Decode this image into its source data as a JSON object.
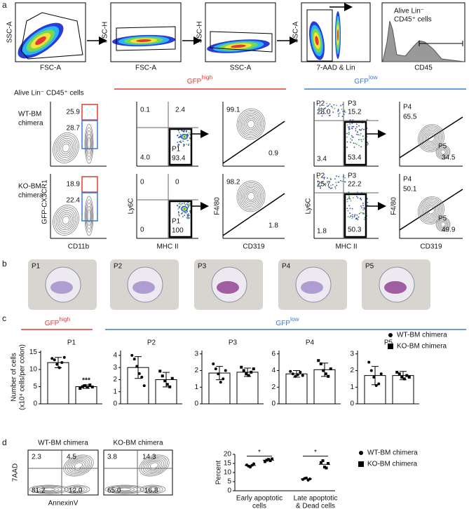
{
  "labels": [
    "a",
    "b",
    "c",
    "d"
  ],
  "a": {
    "top_plots": [
      {
        "y": "SSC-A",
        "x": "FSC-A"
      },
      {
        "y": "FSC-H",
        "x": "FSC-A"
      },
      {
        "y": "SSC-H",
        "x": "SSC-A"
      },
      {
        "y": "SSC-A",
        "x": "7-AAD & Lin"
      }
    ],
    "histogram": {
      "title": [
        "Alive Lin⁻",
        "CD45⁺ cells"
      ],
      "x": "CD45"
    },
    "gate_title": "Alive Lin⁻ CD45⁺ cells",
    "groups": [
      {
        "text": "GFP",
        "sup": "high",
        "color": "#e53935"
      },
      {
        "text": "GFP",
        "sup": "low",
        "color": "#3a7bd5"
      }
    ],
    "y_labels": [
      "GFP-CX3CR1",
      "Ly6C",
      "F4/80",
      "Ly6C",
      "F4/80"
    ],
    "x_labels": [
      "CD11b",
      "MHC II",
      "CD319",
      "MHC II",
      "CD319"
    ],
    "rows": [
      {
        "label": [
          "WT-BM",
          "chimera"
        ],
        "gating": [
          "25.9",
          "28.7"
        ],
        "mhc_high": {
          "q": [
            "0.1",
            "2.4",
            "4.0",
            "93.4"
          ],
          "gate": "P1"
        },
        "f4_high": [
          "99.1",
          "0.9"
        ],
        "mhc_low": {
          "q": [
            "28.0",
            "15.2",
            "3.4",
            "53.4"
          ],
          "gates": [
            "P2",
            "P3"
          ]
        },
        "f4_low": {
          "q": [
            "65.5",
            "34.5"
          ],
          "gates": [
            "P4",
            "P5"
          ]
        }
      },
      {
        "label": [
          "KO-BM",
          "chimera"
        ],
        "gating": [
          "18.9",
          "22.4"
        ],
        "mhc_high": {
          "q": [
            "0",
            "0",
            "0",
            "100"
          ],
          "gate": "P1"
        },
        "f4_high": [
          "98.2",
          "1.8"
        ],
        "mhc_low": {
          "q": [
            "25.7",
            "22.2",
            "1.8",
            "50.3"
          ],
          "gates": [
            "P2",
            "P3"
          ]
        },
        "f4_low": {
          "q": [
            "50.1",
            "49.9"
          ],
          "gates": [
            "P4",
            "P5"
          ]
        }
      }
    ]
  },
  "b": {
    "cells": [
      "P1",
      "P2",
      "P3",
      "P4",
      "P5"
    ]
  },
  "c": {
    "groups": [
      {
        "text": "GFP",
        "sup": "high",
        "color": "#e53935"
      },
      {
        "text": "GFP",
        "sup": "low",
        "color": "#3a7bd5"
      }
    ],
    "ylabel": [
      "Number of cells",
      "(x10⁴ cells/per colon)"
    ],
    "legend": [
      "WT-BM chimera",
      "KO-BM chimera"
    ],
    "charts": [
      {
        "type": "bar",
        "title": "P1",
        "values": [
          12,
          5
        ],
        "errors": [
          1.5,
          0.5
        ],
        "points": [
          [
            13.2,
            12.8,
            11.5,
            10.5,
            12,
            13.5
          ],
          [
            4.5,
            5,
            5.3,
            4.8,
            5.5,
            4.9
          ]
        ],
        "ylim": [
          0,
          15.5
        ],
        "yticks": [
          0,
          5,
          10,
          15
        ],
        "annotation": "***"
      },
      {
        "type": "bar",
        "title": "P2",
        "values": [
          3,
          2
        ],
        "errors": [
          0.9,
          0.6
        ],
        "points": [
          [
            4,
            3.7,
            3.1,
            2.5,
            2.2,
            1.5
          ],
          [
            2.7,
            2.3,
            1.9,
            1.6,
            1.4,
            2.1
          ]
        ],
        "ylim": [
          0,
          4.4
        ],
        "yticks": [
          0,
          1,
          2,
          3,
          4
        ]
      },
      {
        "type": "bar",
        "title": "P3",
        "values": [
          1.85,
          1.9
        ],
        "errors": [
          0.4,
          0.25
        ],
        "points": [
          [
            2.4,
            2.1,
            1.8,
            1.3,
            1.5,
            2
          ],
          [
            2.2,
            2,
            1.8,
            1.7,
            1.9,
            2.1
          ]
        ],
        "ylim": [
          0,
          3.2
        ],
        "yticks": [
          0,
          1,
          2,
          3
        ]
      },
      {
        "type": "bar",
        "title": "P4",
        "values": [
          3.6,
          4.1
        ],
        "errors": [
          0.4,
          0.8
        ],
        "points": [
          [
            3.9,
            3.6,
            3.3,
            3.5,
            3.8,
            3.4
          ],
          [
            5.2,
            4.8,
            4,
            3.6,
            3.3,
            4.2
          ]
        ],
        "ylim": [
          0,
          6.4
        ],
        "yticks": [
          0,
          2,
          4,
          6
        ]
      },
      {
        "type": "bar",
        "title": "P5",
        "values": [
          1.7,
          1.7
        ],
        "errors": [
          0.55,
          0.25
        ],
        "points": [
          [
            2.5,
            2,
            1.6,
            1.1,
            1.2,
            1.8
          ],
          [
            1.9,
            1.8,
            1.6,
            1.5,
            1.7,
            1.6
          ]
        ],
        "ylim": [
          0,
          3.2
        ],
        "yticks": [
          0,
          1,
          2,
          3
        ]
      }
    ]
  },
  "d": {
    "flow": [
      {
        "title": "WT-BM chimera",
        "q": [
          "2.3",
          "4.5",
          "81.2",
          "12.0"
        ]
      },
      {
        "title": "KO-BM chimera",
        "q": [
          "3.8",
          "14.3",
          "65.0",
          "16.8"
        ]
      }
    ],
    "y": "7AAD",
    "x": "AnnexinV",
    "chart": {
      "type": "scatter",
      "ylabel": "Percent",
      "categories": [
        [
          "Early apoptotic",
          "cells"
        ],
        [
          "Late apoptotic",
          "& Dead cells"
        ]
      ],
      "ylim": [
        0,
        20
      ],
      "yticks": [
        0,
        5,
        10,
        15,
        20
      ],
      "series": [
        {
          "name": "WT-BM chimera",
          "marker": "circle",
          "values": [
            [
              14.2,
              13.5,
              13,
              14,
              14.8
            ],
            [
              6.2,
              6.8,
              7,
              5.8,
              6.5
            ]
          ],
          "means": [
            13.9,
            6.5
          ]
        },
        {
          "name": "KO-BM chimera",
          "marker": "square",
          "values": [
            [
              16,
              16.8,
              17.2,
              16.5,
              17.5
            ],
            [
              15.5,
              16.5,
              13,
              12.5,
              15
            ]
          ],
          "means": [
            16.8,
            14.5
          ]
        }
      ],
      "annotations": [
        "*",
        "*"
      ]
    }
  }
}
